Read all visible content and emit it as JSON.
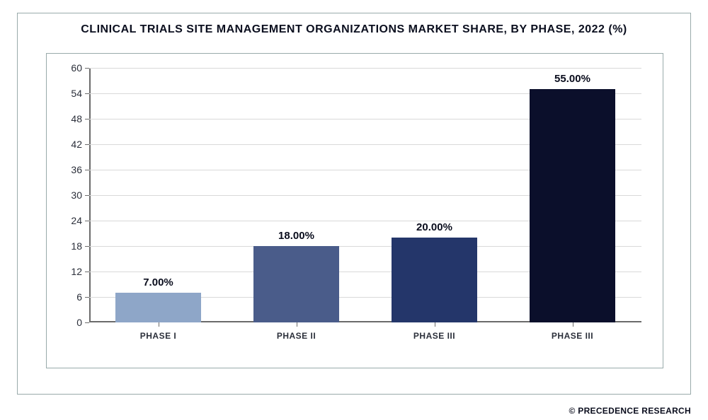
{
  "chart": {
    "type": "bar",
    "title": "CLINICAL TRIALS SITE MANAGEMENT ORGANIZATIONS MARKET SHARE, BY PHASE, 2022 (%)",
    "title_fontsize": 16,
    "title_color": "#0b0f1f",
    "background_color": "#ffffff",
    "outer_border_color": "#99aaaa",
    "inner_border_color": "#99aaaa",
    "categories": [
      "PHASE I",
      "PHASE II",
      "PHASE III",
      "PHASE III"
    ],
    "values": [
      7.0,
      18.0,
      20.0,
      55.0
    ],
    "value_labels": [
      "7.00%",
      "18.00%",
      "20.00%",
      "55.00%"
    ],
    "bar_colors": [
      "#8ea6c8",
      "#4a5c8a",
      "#24366a",
      "#0b0f2b"
    ],
    "bar_width": 0.62,
    "ylim": [
      0,
      60
    ],
    "ytick_step": 6,
    "yticks": [
      0,
      6,
      12,
      18,
      24,
      30,
      36,
      42,
      48,
      54,
      60
    ],
    "grid_color": "#d9d9d9",
    "axis_color": "#6b6b6b",
    "label_fontsize": 14,
    "xlabel_fontsize": 12,
    "value_label_fontsize": 15,
    "value_label_color": "#0a0d1d"
  },
  "credit": "© PRECEDENCE RESEARCH"
}
